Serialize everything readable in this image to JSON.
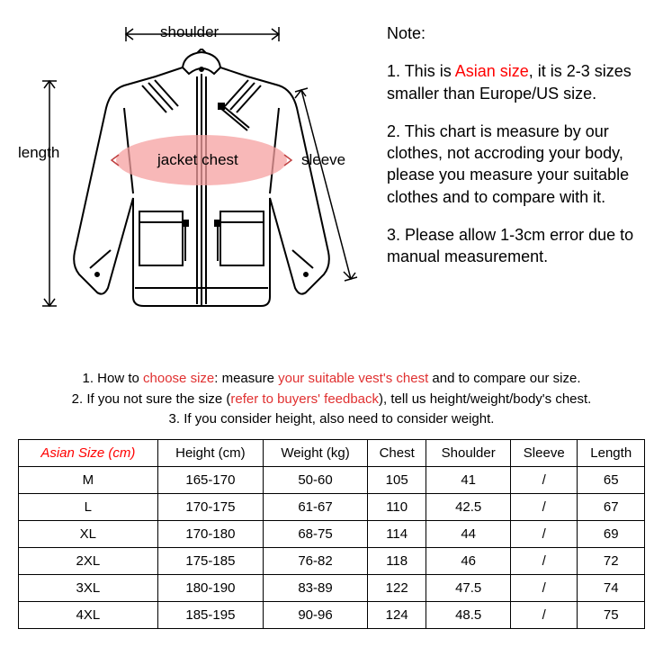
{
  "diagram": {
    "labels": {
      "shoulder": "shoulder",
      "length": "length",
      "sleeve": "sleeve",
      "chest": "jacket chest"
    },
    "colors": {
      "line": "#000000",
      "chest_fill": "#f5a0a0",
      "chest_opacity": 0.75,
      "background": "#ffffff"
    }
  },
  "notes": {
    "title": "Note:",
    "item1_pre": "1. This is ",
    "item1_red": "Asian size",
    "item1_post": ", it is 2-3 sizes smaller than Europe/US size.",
    "item2": "2. This chart is measure by our clothes, not accroding your body, please you measure your suitable clothes and to compare with it.",
    "item3": "3. Please allow 1-3cm error due to manual measurement."
  },
  "instructions": {
    "line1_a": "1. How to ",
    "line1_b": "choose size",
    "line1_c": ": measure ",
    "line1_d": "your suitable vest's chest",
    "line1_e": " and to compare our size.",
    "line2_a": "2. If you not sure the size (",
    "line2_b": "refer to buyers' feedback",
    "line2_c": "), tell us height/weight/body's chest.",
    "line3": "3. If you consider height, also need to consider weight."
  },
  "table": {
    "columns": [
      "Asian Size (cm)",
      "Height (cm)",
      "Weight (kg)",
      "Chest",
      "Shoulder",
      "Sleeve",
      "Length"
    ],
    "rows": [
      [
        "M",
        "165-170",
        "50-60",
        "105",
        "41",
        "/",
        "65"
      ],
      [
        "L",
        "170-175",
        "61-67",
        "110",
        "42.5",
        "/",
        "67"
      ],
      [
        "XL",
        "170-180",
        "68-75",
        "114",
        "44",
        "/",
        "69"
      ],
      [
        "2XL",
        "175-185",
        "76-82",
        "118",
        "46",
        "/",
        "72"
      ],
      [
        "3XL",
        "180-190",
        "83-89",
        "122",
        "47.5",
        "/",
        "74"
      ],
      [
        "4XL",
        "185-195",
        "90-96",
        "124",
        "48.5",
        "/",
        "75"
      ]
    ]
  }
}
